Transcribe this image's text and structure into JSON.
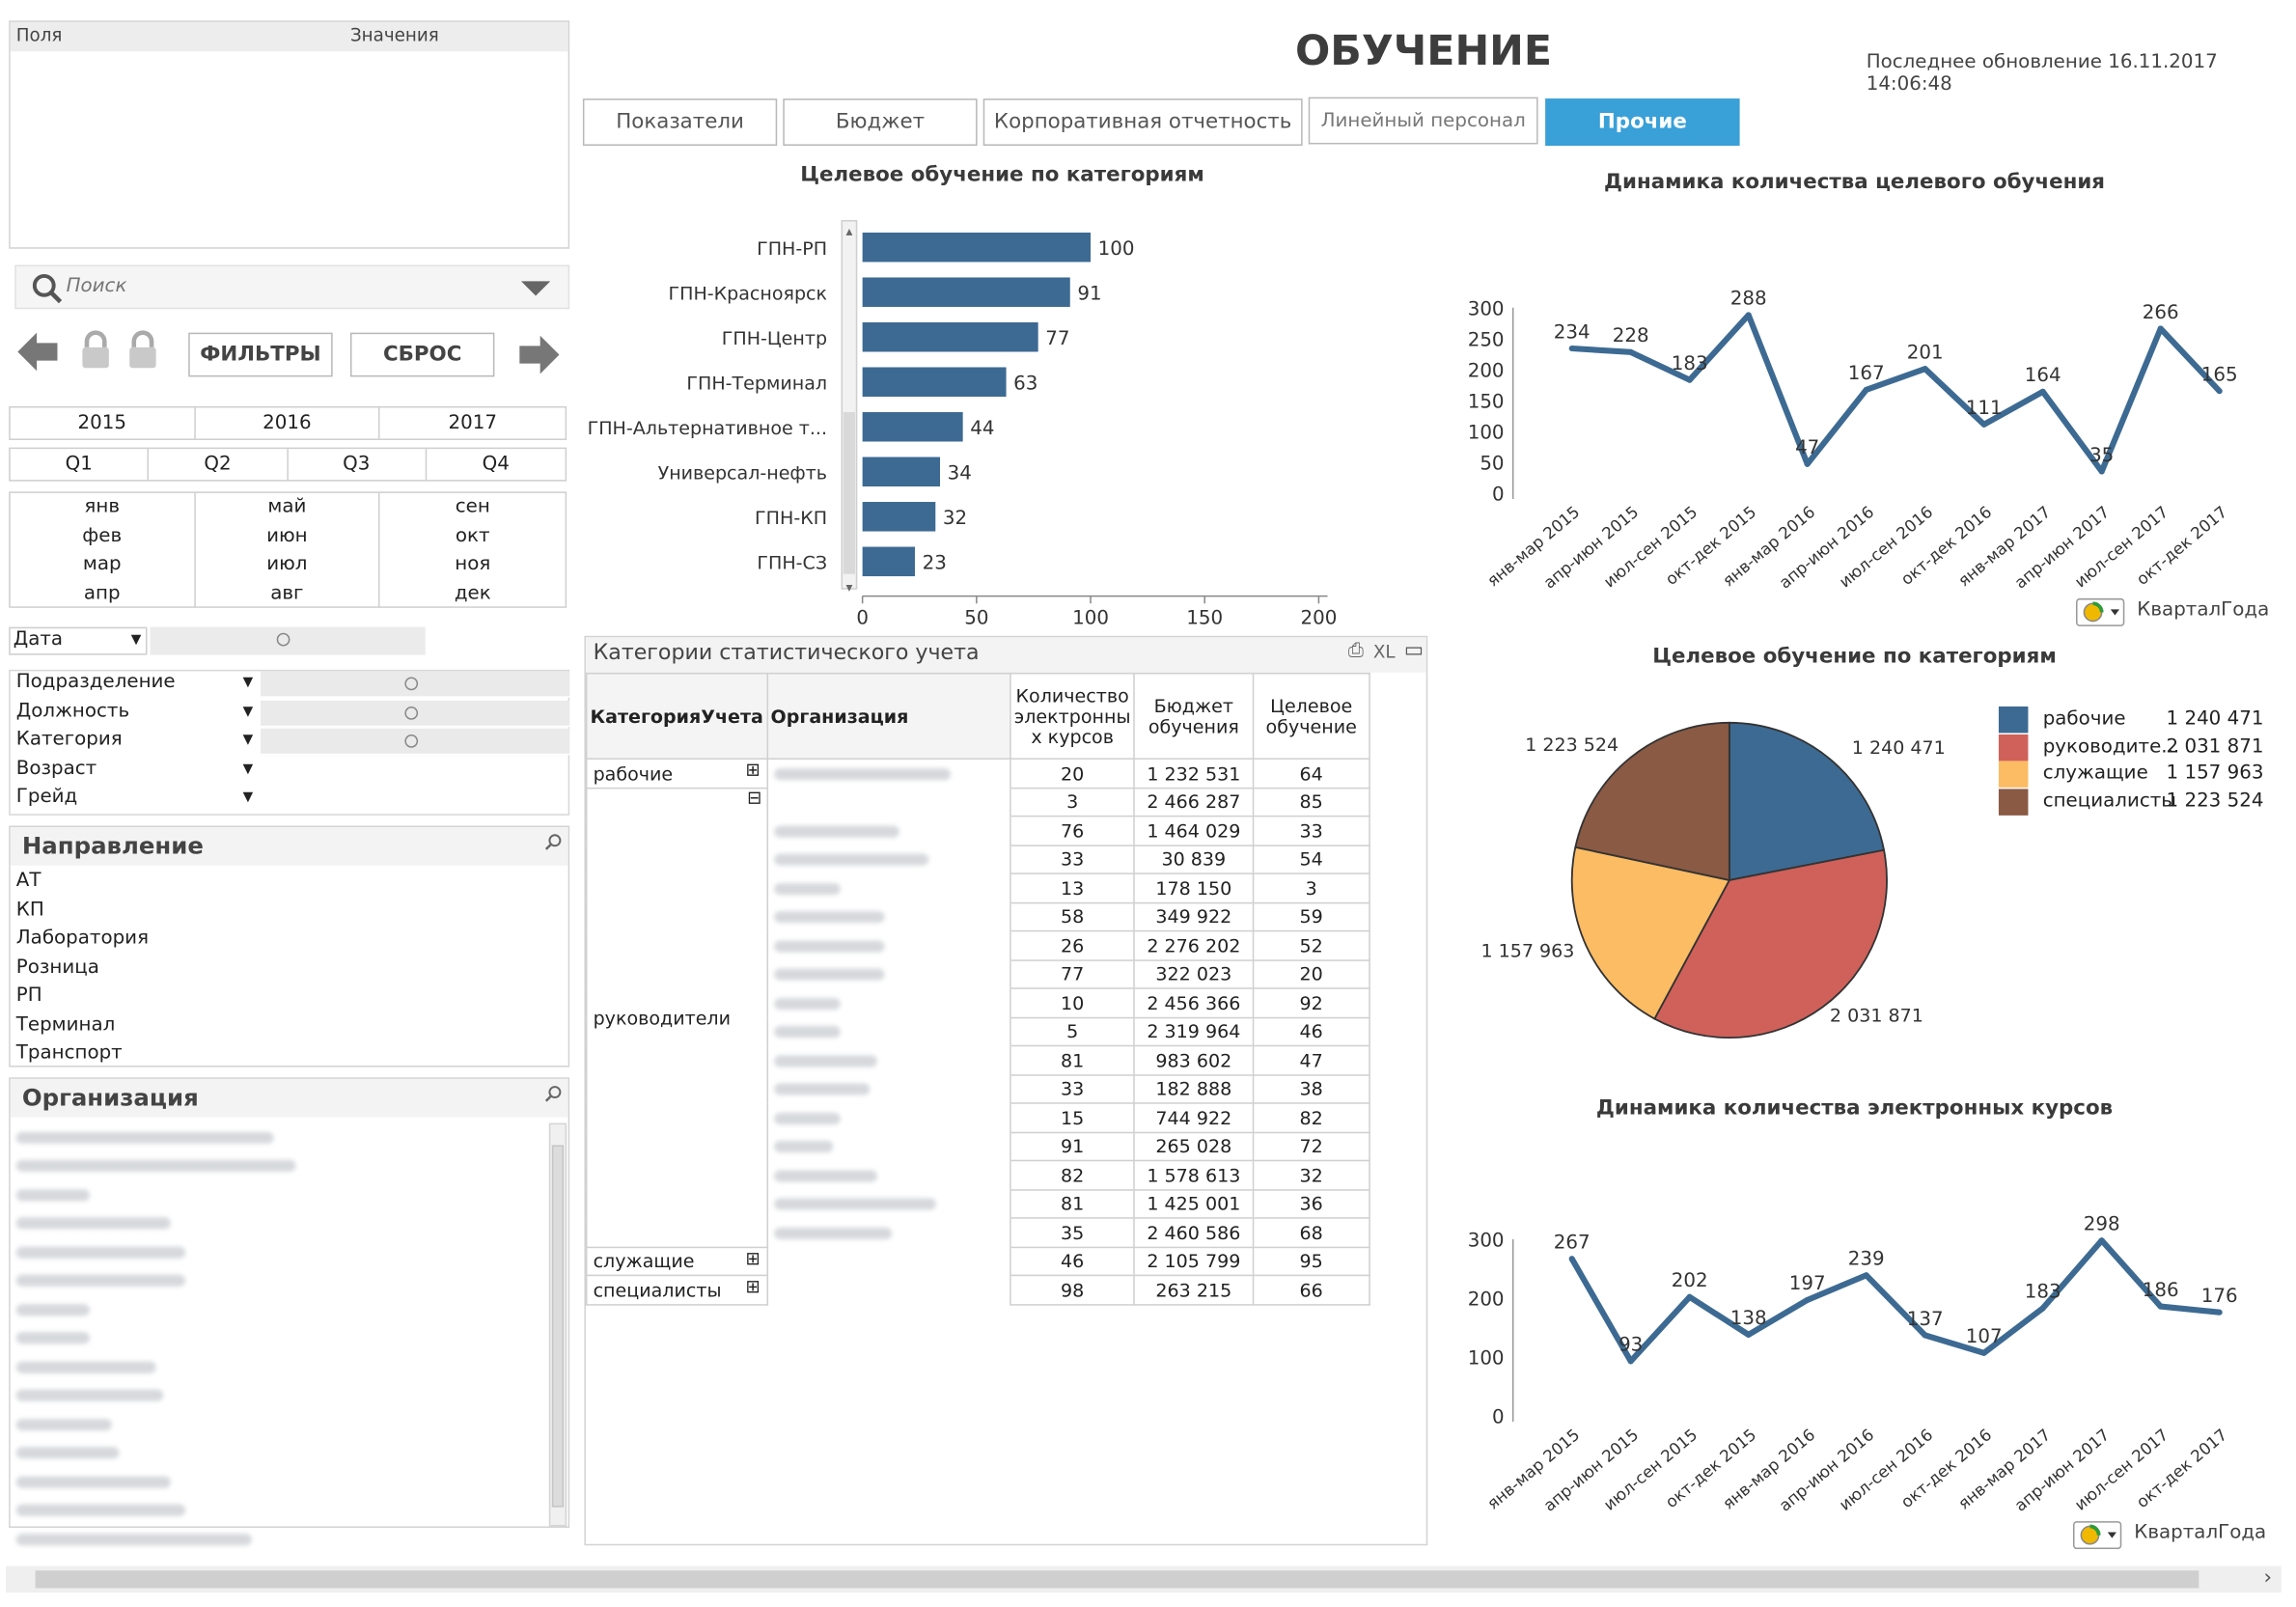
{
  "header": {
    "title": "ОБУЧЕНИЕ",
    "updated": "Последнее обновление 16.11.2017 14:06:48"
  },
  "tabs": [
    {
      "label": "Показатели"
    },
    {
      "label": "Бюджет"
    },
    {
      "label": "Корпоративная отчетность"
    },
    {
      "label": "Линейный персонал"
    },
    {
      "label": "Прочие",
      "active": true
    }
  ],
  "fields_panel": {
    "col1": "Поля",
    "col2": "Значения"
  },
  "search": {
    "placeholder": "Поиск"
  },
  "controls": {
    "filters": "ФИЛЬТРЫ",
    "reset": "СБРОС"
  },
  "years": [
    "2015",
    "2016",
    "2017"
  ],
  "quarters": [
    "Q1",
    "Q2",
    "Q3",
    "Q4"
  ],
  "months": [
    [
      "янв",
      "фев",
      "мар",
      "апр"
    ],
    [
      "май",
      "июн",
      "июл",
      "авг"
    ],
    [
      "сен",
      "окт",
      "ноя",
      "дек"
    ]
  ],
  "date_label": "Дата",
  "dims": [
    "Подразделение",
    "Должность",
    "Категория",
    "Возраст",
    "Грейд"
  ],
  "direction": {
    "title": "Направление",
    "items": [
      "АТ",
      "КП",
      "Лаборатория",
      "Розница",
      "РП",
      "Терминал",
      "Транспорт"
    ]
  },
  "organization": {
    "title": "Организация"
  },
  "bar_chart": {
    "title": "Целевое обучение по категориям"
  },
  "pivot": {
    "title": "Категории статистического учета",
    "icons": {
      "print": "⎙",
      "xl": "XL",
      "max": "▭"
    },
    "headers": [
      "КатегорияУчета",
      "Организация",
      "Количество электронны х курсов",
      "Бюджет обучения",
      "Целевое обучение"
    ],
    "groups": [
      {
        "category": "рабочие",
        "expand": "⊞",
        "rows": [
          [
            "20",
            "1 232 531",
            "64"
          ]
        ]
      },
      {
        "category": "руководители",
        "expand": "⊟",
        "rows": [
          [
            "3",
            "2 466 287",
            "85"
          ],
          [
            "76",
            "1 464 029",
            "33"
          ],
          [
            "33",
            "30 839",
            "54"
          ],
          [
            "13",
            "178 150",
            "3"
          ],
          [
            "58",
            "349 922",
            "59"
          ],
          [
            "26",
            "2 276 202",
            "52"
          ],
          [
            "77",
            "322 023",
            "20"
          ],
          [
            "10",
            "2 456 366",
            "92"
          ],
          [
            "5",
            "2 319 964",
            "46"
          ],
          [
            "81",
            "983 602",
            "47"
          ],
          [
            "33",
            "182 888",
            "38"
          ],
          [
            "15",
            "744 922",
            "82"
          ],
          [
            "91",
            "265 028",
            "72"
          ],
          [
            "82",
            "1 578 613",
            "32"
          ],
          [
            "81",
            "1 425 001",
            "36"
          ],
          [
            "35",
            "2 460 586",
            "68"
          ]
        ]
      },
      {
        "category": "служащие",
        "expand": "⊞",
        "rows": [
          [
            "46",
            "2 105 799",
            "95"
          ]
        ]
      },
      {
        "category": "специалисты",
        "expand": "⊞",
        "rows": [
          [
            "98",
            "263 215",
            "66"
          ]
        ]
      }
    ]
  },
  "pie_legend": [
    {
      "name": "рабочие",
      "value": "1 240 471",
      "color": "#3d6a92"
    },
    {
      "name": "руководите...",
      "value": "2 031 871",
      "color": "#d0615a"
    },
    {
      "name": "служащие",
      "value": "1 157 963",
      "color": "#fcbc63"
    },
    {
      "name": "специалисты",
      "value": "1 223 524",
      "color": "#8a5a44"
    }
  ],
  "cycle_label": "КварталГода",
  "chart_data": [
    {
      "type": "bar",
      "title": "Целевое обучение по категориям",
      "orientation": "horizontal",
      "categories": [
        "ГПН-РП",
        "ГПН-Красноярск",
        "ГПН-Центр",
        "ГПН-Терминал",
        "ГПН-Альтернативное т...",
        "Универсал-нефть",
        "ГПН-КП",
        "ГПН-СЗ"
      ],
      "values": [
        100,
        91,
        77,
        63,
        44,
        34,
        32,
        23
      ],
      "xlim": [
        0,
        200
      ],
      "xticks": [
        0,
        50,
        100,
        150,
        200
      ],
      "color": "#3d6a92"
    },
    {
      "type": "line",
      "title": "Динамика количества целевого обучения",
      "x": [
        "янв-мар 2015",
        "апр-июн 2015",
        "июл-сен 2015",
        "окт-дек 2015",
        "янв-мар 2016",
        "апр-июн 2016",
        "июл-сен 2016",
        "окт-дек 2016",
        "янв-мар 2017",
        "апр-июн 2017",
        "июл-сен 2017",
        "окт-дек 2017"
      ],
      "values": [
        234,
        228,
        183,
        288,
        47,
        167,
        201,
        111,
        164,
        35,
        266,
        165
      ],
      "ylim": [
        0,
        300
      ],
      "yticks": [
        0,
        50,
        100,
        150,
        200,
        250,
        300
      ],
      "color": "#3d6a92"
    },
    {
      "type": "pie",
      "title": "Целевое обучение по категориям",
      "labels": [
        "рабочие",
        "руководите...",
        "служащие",
        "специалисты"
      ],
      "values": [
        1240471,
        2031871,
        1157963,
        1223524
      ],
      "value_labels": [
        "1 240 471",
        "2 031 871",
        "1 157 963",
        "1 223 524"
      ],
      "colors": [
        "#3d6a92",
        "#d0615a",
        "#fcbc63",
        "#8a5a44"
      ],
      "legend": "right"
    },
    {
      "type": "line",
      "title": "Динамика количества электронных курсов",
      "x": [
        "янв-мар 2015",
        "апр-июн 2015",
        "июл-сен 2015",
        "окт-дек 2015",
        "янв-мар 2016",
        "апр-июн 2016",
        "июл-сен 2016",
        "окт-дек 2016",
        "янв-мар 2017",
        "апр-июн 2017",
        "июл-сен 2017",
        "окт-дек 2017"
      ],
      "values": [
        267,
        93,
        202,
        138,
        197,
        239,
        137,
        107,
        183,
        298,
        186,
        176
      ],
      "ylim": [
        0,
        300
      ],
      "yticks": [
        0,
        100,
        200,
        300
      ],
      "color": "#3d6a92"
    }
  ]
}
